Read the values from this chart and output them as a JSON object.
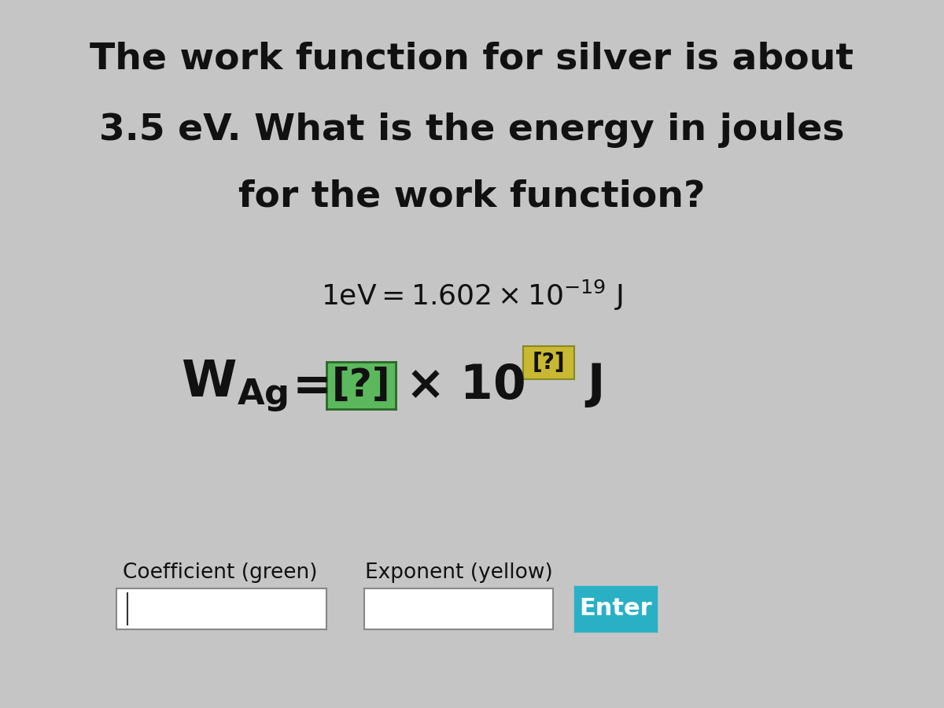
{
  "bg_color": "#c5c5c5",
  "title_line1": "The work function for silver is about",
  "title_line2": "3.5 eV. What is the energy in joules",
  "title_line3": "for the work function?",
  "label_coeff": "Coefficient (green)",
  "label_exp": "Exponent (yellow)",
  "btn_text": "Enter",
  "green_color": "#5cb85c",
  "yellow_color": "#c8b832",
  "teal_color": "#2ab0c5",
  "text_color": "#111111",
  "title_fontsize": 34,
  "conv_fontsize": 26,
  "eq_fontsize": 38,
  "label_fontsize": 19
}
